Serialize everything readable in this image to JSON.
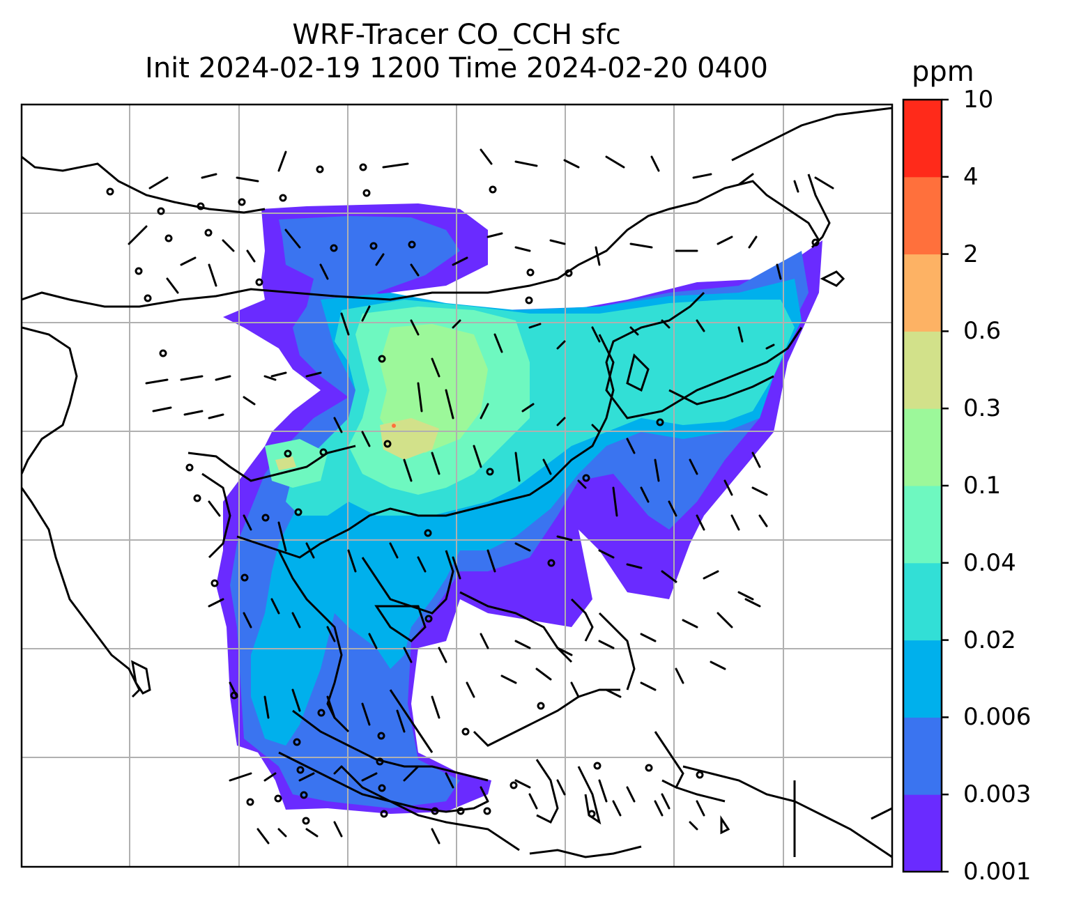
{
  "title": {
    "line1": "WRF-Tracer CO_CCH sfc",
    "line2": "Init 2024-02-19 1200 Time 2024-02-20 0400"
  },
  "colorbar": {
    "unit": "ppm",
    "levels": [
      "0.001",
      "0.003",
      "0.006",
      "0.02",
      "0.04",
      "0.1",
      "0.3",
      "0.6",
      "2",
      "4",
      "10"
    ],
    "colors": [
      "#6a2bff",
      "#3a74f0",
      "#00b0ec",
      "#32dfd6",
      "#6ef8c0",
      "#9cf89a",
      "#d2e18a",
      "#fdb264",
      "#ff703c",
      "#ff2a1a"
    ]
  }
}
